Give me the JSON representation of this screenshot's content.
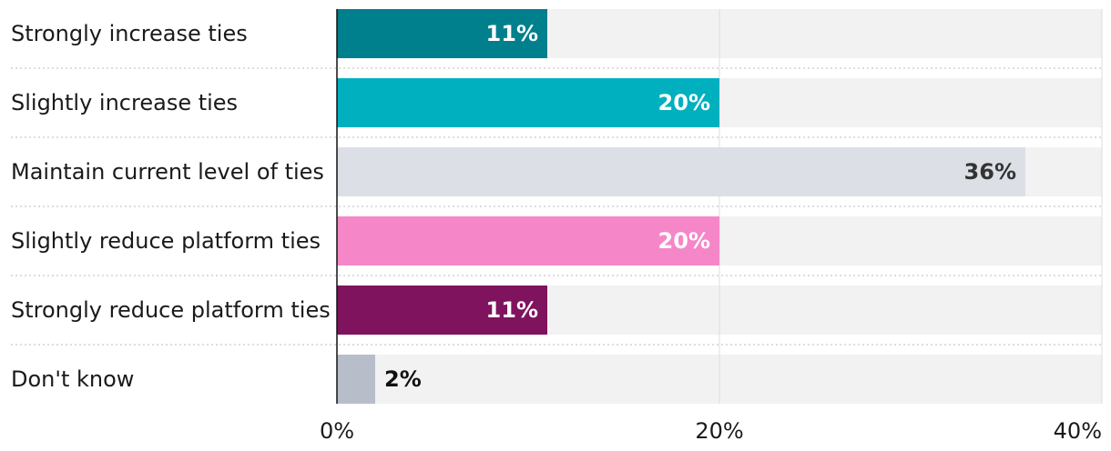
{
  "chart_data": {
    "type": "bar",
    "orientation": "horizontal",
    "title": "",
    "xlabel": "",
    "ylabel": "",
    "categories": [
      "Strongly increase ties",
      "Slightly increase ties",
      "Maintain current level of ties",
      "Slightly reduce platform ties",
      "Strongly reduce platform ties",
      "Don't know"
    ],
    "values": [
      11,
      20,
      36,
      20,
      11,
      2
    ],
    "data_labels": [
      "11%",
      "20%",
      "36%",
      "20%",
      "11%",
      "2%"
    ],
    "xlim": [
      0,
      40
    ],
    "xticks": [
      0,
      20,
      40
    ],
    "xtick_labels": [
      "0%",
      "20%",
      "40%"
    ],
    "grid": true,
    "colors": [
      "#007f8c",
      "#00b0bf",
      "#dcdfe6",
      "#f587c8",
      "#7f135e",
      "#b8bdca"
    ],
    "label_colors": [
      "#ffffff",
      "#ffffff",
      "#333333",
      "#ffffff",
      "#ffffff",
      "#111111"
    ],
    "track_color": "#f2f2f2",
    "gridline_color": "#dcdcdc",
    "axis_color": "#111111"
  }
}
